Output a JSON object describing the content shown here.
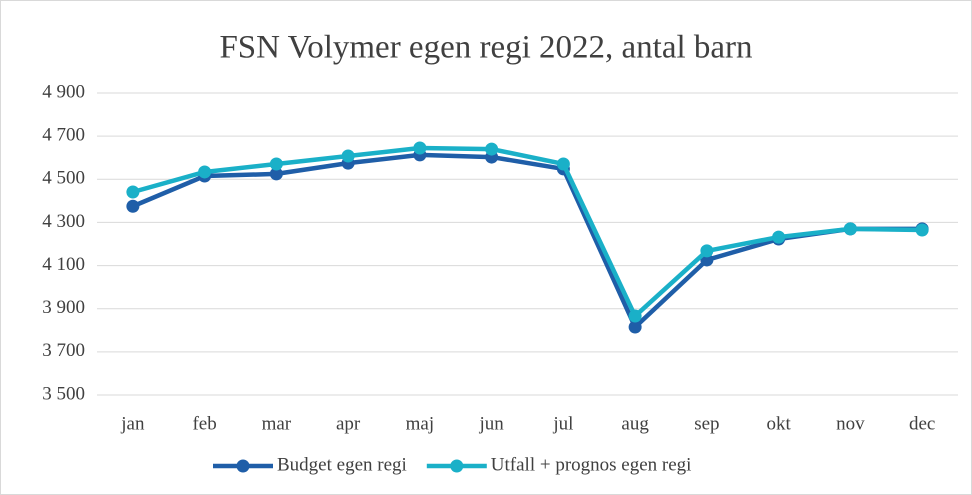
{
  "chart_data": {
    "type": "line",
    "title": "FSN Volymer egen regi 2022, antal barn",
    "categories": [
      "jan",
      "feb",
      "mar",
      "apr",
      "maj",
      "jun",
      "jul",
      "aug",
      "sep",
      "okt",
      "nov",
      "dec"
    ],
    "series": [
      {
        "name": "Budget egen regi",
        "color": "#1f5ea8",
        "values": [
          4375,
          4515,
          4525,
          4575,
          4613,
          4603,
          4548,
          3815,
          4126,
          4223,
          4270,
          4270
        ]
      },
      {
        "name": "Utfall + prognos egen regi",
        "color": "#1ab0c8",
        "values": [
          4441,
          4534,
          4571,
          4608,
          4645,
          4640,
          4571,
          3866,
          4168,
          4232,
          4270,
          4265
        ]
      }
    ],
    "ylim": [
      3500,
      4900
    ],
    "yticks": [
      {
        "value": 3500,
        "label": "3 500"
      },
      {
        "value": 3700,
        "label": "3 700"
      },
      {
        "value": 3900,
        "label": "3 900"
      },
      {
        "value": 4100,
        "label": "4 100"
      },
      {
        "value": 4300,
        "label": "4 300"
      },
      {
        "value": 4500,
        "label": "4 500"
      },
      {
        "value": 4700,
        "label": "4 700"
      },
      {
        "value": 4900,
        "label": "4 900"
      }
    ],
    "grid": true,
    "legend": "bottom"
  }
}
